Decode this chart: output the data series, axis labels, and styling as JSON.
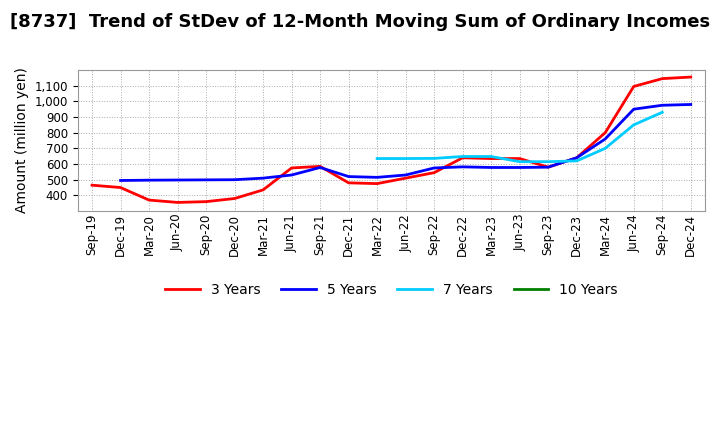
{
  "title": "[8737]  Trend of StDev of 12-Month Moving Sum of Ordinary Incomes",
  "ylabel": "Amount (million yen)",
  "ylim": [
    300,
    1200
  ],
  "yticks": [
    400,
    500,
    600,
    700,
    800,
    900,
    1000,
    1100
  ],
  "background_color": "#ffffff",
  "grid_color": "#aaaaaa",
  "title_fontsize": 13,
  "label_fontsize": 10,
  "tick_fontsize": 8.5,
  "x_labels": [
    "Sep-19",
    "Dec-19",
    "Mar-20",
    "Jun-20",
    "Sep-20",
    "Dec-20",
    "Mar-21",
    "Jun-21",
    "Sep-21",
    "Dec-21",
    "Mar-22",
    "Jun-22",
    "Sep-22",
    "Dec-22",
    "Mar-23",
    "Jun-23",
    "Sep-23",
    "Dec-23",
    "Mar-24",
    "Jun-24",
    "Sep-24",
    "Dec-24"
  ],
  "series": {
    "3 Years": {
      "color": "#ff0000",
      "linewidth": 2.0,
      "data_x": [
        0,
        1,
        2,
        3,
        4,
        5,
        6,
        7,
        8,
        9,
        10,
        11,
        12,
        13,
        14,
        15,
        16,
        17,
        18,
        19,
        20,
        21
      ],
      "data_y": [
        465,
        450,
        370,
        355,
        360,
        380,
        435,
        575,
        585,
        480,
        475,
        510,
        545,
        640,
        635,
        635,
        580,
        640,
        800,
        1095,
        1145,
        1155
      ]
    },
    "5 Years": {
      "color": "#0000ff",
      "linewidth": 2.0,
      "data_x": [
        1,
        2,
        3,
        4,
        5,
        6,
        7,
        8,
        9,
        10,
        11,
        12,
        13,
        14,
        15,
        16,
        17,
        18,
        19,
        20,
        21
      ],
      "data_y": [
        495,
        497,
        498,
        499,
        500,
        510,
        530,
        578,
        520,
        515,
        530,
        575,
        582,
        578,
        578,
        580,
        640,
        760,
        950,
        975,
        980
      ]
    },
    "7 Years": {
      "color": "#00ccff",
      "linewidth": 2.0,
      "data_x": [
        10,
        11,
        12,
        13,
        14,
        15,
        16,
        17,
        18,
        19,
        20
      ],
      "data_y": [
        635,
        635,
        636,
        648,
        648,
        615,
        615,
        620,
        700,
        850,
        930
      ]
    },
    "10 Years": {
      "color": "#008000",
      "linewidth": 2.0,
      "data_x": [],
      "data_y": []
    }
  }
}
